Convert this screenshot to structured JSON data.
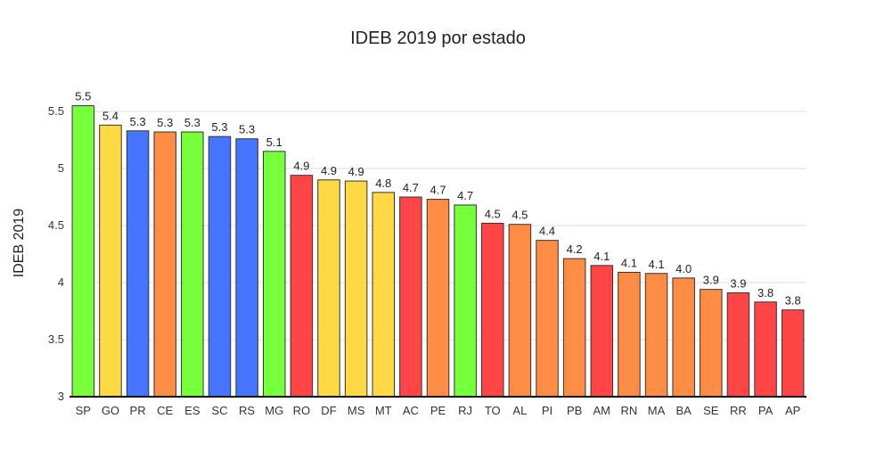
{
  "chart_data": {
    "type": "bar",
    "title": "IDEB 2019 por estado",
    "xlabel": "",
    "ylabel": "IDEB 2019",
    "ylim": [
      3,
      5.7
    ],
    "yticks": [
      "3",
      "3.5",
      "4",
      "4.5",
      "5",
      "5.5"
    ],
    "grid": true,
    "categories": [
      "SP",
      "GO",
      "PR",
      "CE",
      "ES",
      "SC",
      "RS",
      "MG",
      "RO",
      "DF",
      "MS",
      "MT",
      "AC",
      "PE",
      "RJ",
      "TO",
      "AL",
      "PI",
      "PB",
      "AM",
      "RN",
      "MA",
      "BA",
      "SE",
      "RR",
      "PA",
      "AP"
    ],
    "values": [
      5.55,
      5.38,
      5.33,
      5.32,
      5.32,
      5.28,
      5.26,
      5.15,
      4.94,
      4.9,
      4.89,
      4.79,
      4.75,
      4.73,
      4.68,
      4.52,
      4.51,
      4.37,
      4.21,
      4.15,
      4.09,
      4.08,
      4.04,
      3.94,
      3.91,
      3.83,
      3.76
    ],
    "data_labels": [
      "5.5",
      "5.4",
      "5.3",
      "5.3",
      "5.3",
      "5.3",
      "5.3",
      "5.1",
      "4.9",
      "4.9",
      "4.9",
      "4.8",
      "4.7",
      "4.7",
      "4.7",
      "4.5",
      "4.5",
      "4.4",
      "4.2",
      "4.1",
      "4.1",
      "4.1",
      "4.0",
      "3.9",
      "3.9",
      "3.8",
      "3.8"
    ],
    "colors": [
      "#77ff3b",
      "#ffd945",
      "#4575ff",
      "#ff8c45",
      "#77ff3b",
      "#4575ff",
      "#4575ff",
      "#77ff3b",
      "#ff4545",
      "#ffd945",
      "#ffd945",
      "#ffd945",
      "#ff4545",
      "#ff8c45",
      "#77ff3b",
      "#ff4545",
      "#ff8c45",
      "#ff8c45",
      "#ff8c45",
      "#ff4545",
      "#ff8c45",
      "#ff8c45",
      "#ff8c45",
      "#ff8c45",
      "#ff4545",
      "#ff4545",
      "#ff4545"
    ]
  }
}
